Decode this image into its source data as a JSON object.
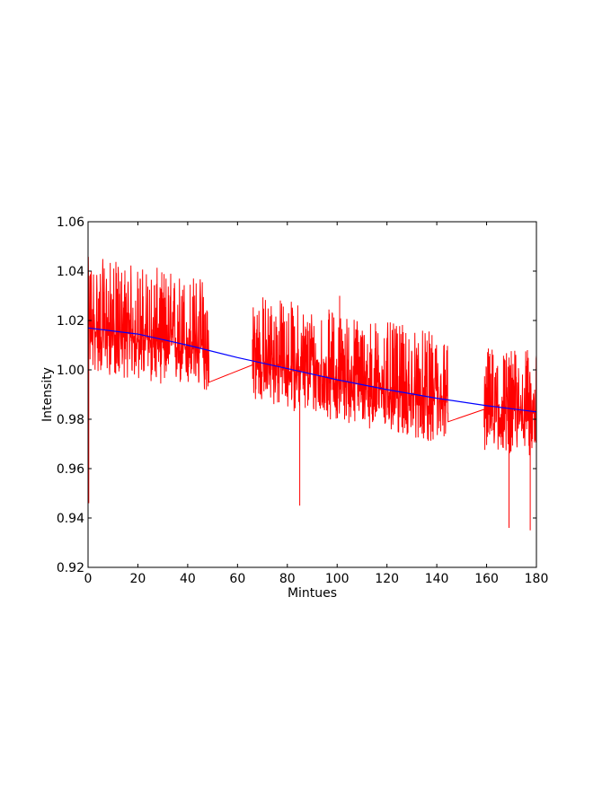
{
  "chart_data": {
    "type": "line",
    "title": "",
    "xlabel": "Mintues",
    "ylabel": "Intensity",
    "xlim": [
      0,
      180
    ],
    "ylim": [
      0.92,
      1.06
    ],
    "x_ticks": [
      0,
      20,
      40,
      60,
      80,
      100,
      120,
      140,
      160,
      180
    ],
    "y_ticks": [
      0.92,
      0.94,
      0.96,
      0.98,
      1.0,
      1.02,
      1.04,
      1.06
    ],
    "x_tick_labels": [
      "0",
      "20",
      "40",
      "60",
      "80",
      "100",
      "120",
      "140",
      "160",
      "180"
    ],
    "y_tick_labels": [
      "0.92",
      "0.94",
      "0.96",
      "0.98",
      "1.00",
      "1.02",
      "1.04",
      "1.06"
    ],
    "grid": false,
    "series": [
      {
        "color": "#ff0000",
        "style": "noisy measurements",
        "segments": [
          {
            "x_range": [
              0,
              48.5
            ],
            "trend_start": 1.016,
            "trend_end": 1.008,
            "noise_low": -0.017,
            "noise_high": 0.03
          },
          {
            "x_range": [
              66,
              144.5
            ],
            "trend_start": 1.004,
            "trend_end": 0.986,
            "noise_low": -0.017,
            "noise_high": 0.028
          },
          {
            "x_range": [
              159,
              180
            ],
            "trend_start": 0.985,
            "trend_end": 0.983,
            "noise_low": -0.018,
            "noise_high": 0.025
          }
        ],
        "bridges": [
          {
            "x": [
              48.5,
              66
            ],
            "y": [
              0.995,
              1.002
            ]
          },
          {
            "x": [
              144.5,
              159
            ],
            "y": [
              0.979,
              0.984
            ]
          }
        ],
        "spikes": [
          {
            "x": 0.3,
            "y": 0.946
          },
          {
            "x": 85,
            "y": 0.945
          },
          {
            "x": 101,
            "y": 1.03
          },
          {
            "x": 169,
            "y": 0.936
          },
          {
            "x": 177.5,
            "y": 0.935
          }
        ]
      },
      {
        "color": "#0000ff",
        "style": "smooth fit",
        "x": [
          0,
          20,
          40,
          60,
          80,
          100,
          120,
          140,
          160,
          180
        ],
        "y": [
          1.017,
          1.0145,
          1.01,
          1.005,
          1.0005,
          0.996,
          0.992,
          0.9885,
          0.9855,
          0.983
        ]
      }
    ]
  }
}
